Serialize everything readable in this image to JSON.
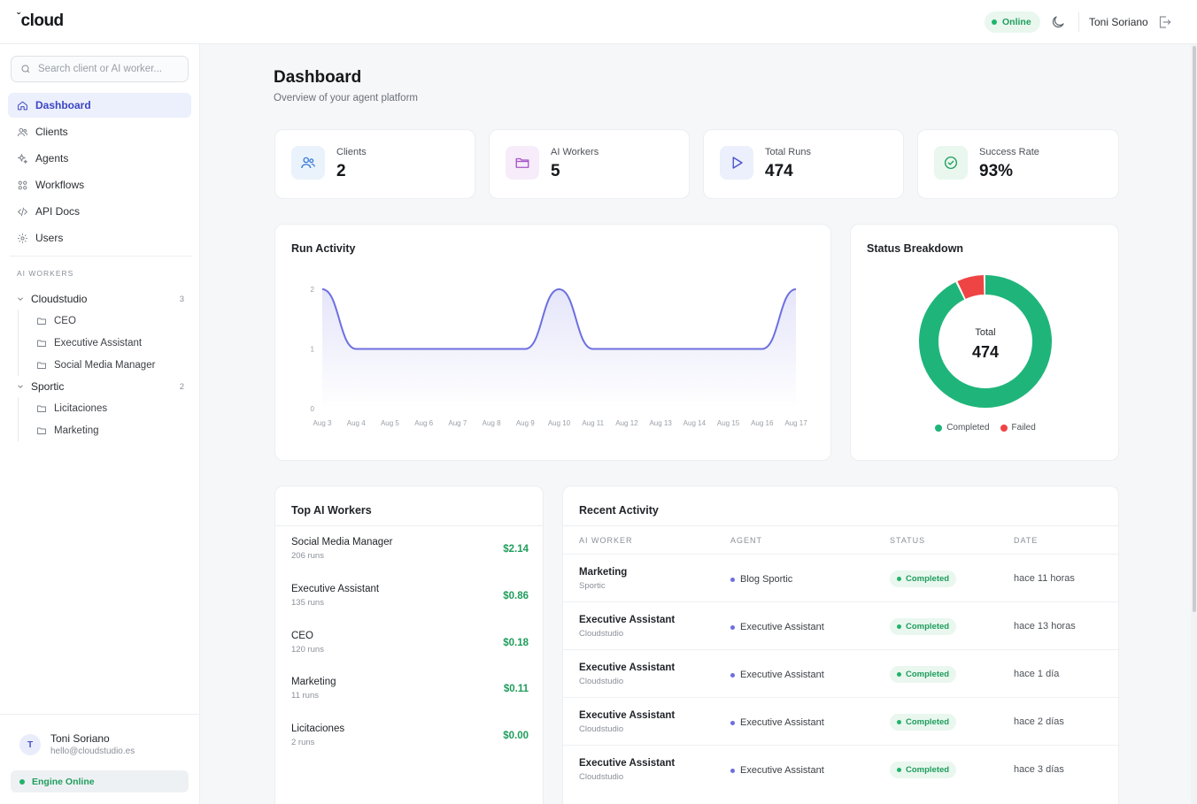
{
  "app": {
    "logo_text": "cloud"
  },
  "header": {
    "status": "Online",
    "user_name": "Toni Soriano"
  },
  "search": {
    "placeholder": "Search client or AI worker..."
  },
  "nav": [
    {
      "label": "Dashboard",
      "icon": "home-icon",
      "active": true
    },
    {
      "label": "Clients",
      "icon": "users-icon"
    },
    {
      "label": "Agents",
      "icon": "sparkles-icon"
    },
    {
      "label": "Workflows",
      "icon": "grid-icon"
    },
    {
      "label": "API Docs",
      "icon": "code-icon"
    },
    {
      "label": "Users",
      "icon": "gear-icon"
    }
  ],
  "ai_workers_section": {
    "label": "AI WORKERS",
    "groups": [
      {
        "name": "Cloudstudio",
        "count": "3",
        "children": [
          "CEO",
          "Executive Assistant",
          "Social Media Manager"
        ]
      },
      {
        "name": "Sportic",
        "count": "2",
        "children": [
          "Licitaciones",
          "Marketing"
        ]
      }
    ]
  },
  "sidebar_user": {
    "initial": "T",
    "name": "Toni Soriano",
    "email": "hello@cloudstudio.es",
    "engine_status": "Engine Online"
  },
  "page": {
    "title": "Dashboard",
    "subtitle": "Overview of your agent platform"
  },
  "stats": [
    {
      "label": "Clients",
      "value": "2",
      "icon": "users-icon",
      "color": "#3b7bd8",
      "bg": "#eaf2fc"
    },
    {
      "label": "AI Workers",
      "value": "5",
      "icon": "folder-icon",
      "color": "#a855c7",
      "bg": "#f6ecfa"
    },
    {
      "label": "Total Runs",
      "value": "474",
      "icon": "play-icon",
      "color": "#4653c9",
      "bg": "#eceffc"
    },
    {
      "label": "Success Rate",
      "value": "93%",
      "icon": "check-circle-icon",
      "color": "#1f9d5c",
      "bg": "#e9f7ef"
    }
  ],
  "run_activity": {
    "title": "Run Activity"
  },
  "status_breakdown": {
    "title": "Status Breakdown",
    "center_label": "Total",
    "center_value": "474",
    "legend": [
      {
        "label": "Completed",
        "color": "#1fb57a"
      },
      {
        "label": "Failed",
        "color": "#ef4444"
      }
    ]
  },
  "top_workers": {
    "title": "Top AI Workers",
    "rows": [
      {
        "name": "Social Media Manager",
        "runs": "206 runs",
        "cost": "$2.14"
      },
      {
        "name": "Executive Assistant",
        "runs": "135 runs",
        "cost": "$0.86"
      },
      {
        "name": "CEO",
        "runs": "120 runs",
        "cost": "$0.18"
      },
      {
        "name": "Marketing",
        "runs": "11 runs",
        "cost": "$0.11"
      },
      {
        "name": "Licitaciones",
        "runs": "2 runs",
        "cost": "$0.00"
      }
    ]
  },
  "recent_activity": {
    "title": "Recent Activity",
    "columns": [
      "AI WORKER",
      "AGENT",
      "STATUS",
      "DATE"
    ],
    "rows": [
      {
        "worker": "Marketing",
        "client": "Sportic",
        "agent": "Blog Sportic",
        "status": "Completed",
        "date": "hace 11 horas"
      },
      {
        "worker": "Executive Assistant",
        "client": "Cloudstudio",
        "agent": "Executive Assistant",
        "status": "Completed",
        "date": "hace 13 horas"
      },
      {
        "worker": "Executive Assistant",
        "client": "Cloudstudio",
        "agent": "Executive Assistant",
        "status": "Completed",
        "date": "hace 1 día"
      },
      {
        "worker": "Executive Assistant",
        "client": "Cloudstudio",
        "agent": "Executive Assistant",
        "status": "Completed",
        "date": "hace 2 días"
      },
      {
        "worker": "Executive Assistant",
        "client": "Cloudstudio",
        "agent": "Executive Assistant",
        "status": "Completed",
        "date": "hace 3 días"
      }
    ]
  },
  "chart_data": [
    {
      "type": "area",
      "title": "Run Activity",
      "categories": [
        "Aug 3",
        "Aug 4",
        "Aug 5",
        "Aug 6",
        "Aug 7",
        "Aug 8",
        "Aug 9",
        "Aug 10",
        "Aug 11",
        "Aug 12",
        "Aug 13",
        "Aug 14",
        "Aug 15",
        "Aug 16",
        "Aug 17"
      ],
      "values": [
        2,
        1,
        1,
        1,
        1,
        1,
        1,
        2,
        1,
        1,
        1,
        1,
        1,
        1,
        2
      ],
      "yticks": [
        "0",
        "1",
        "2"
      ],
      "ylim": [
        0,
        2
      ],
      "color": "#6c6fe0"
    },
    {
      "type": "pie",
      "title": "Status Breakdown",
      "categories": [
        "Completed",
        "Failed"
      ],
      "values": [
        441,
        33
      ],
      "colors": [
        "#1fb57a",
        "#ef4444"
      ]
    }
  ]
}
